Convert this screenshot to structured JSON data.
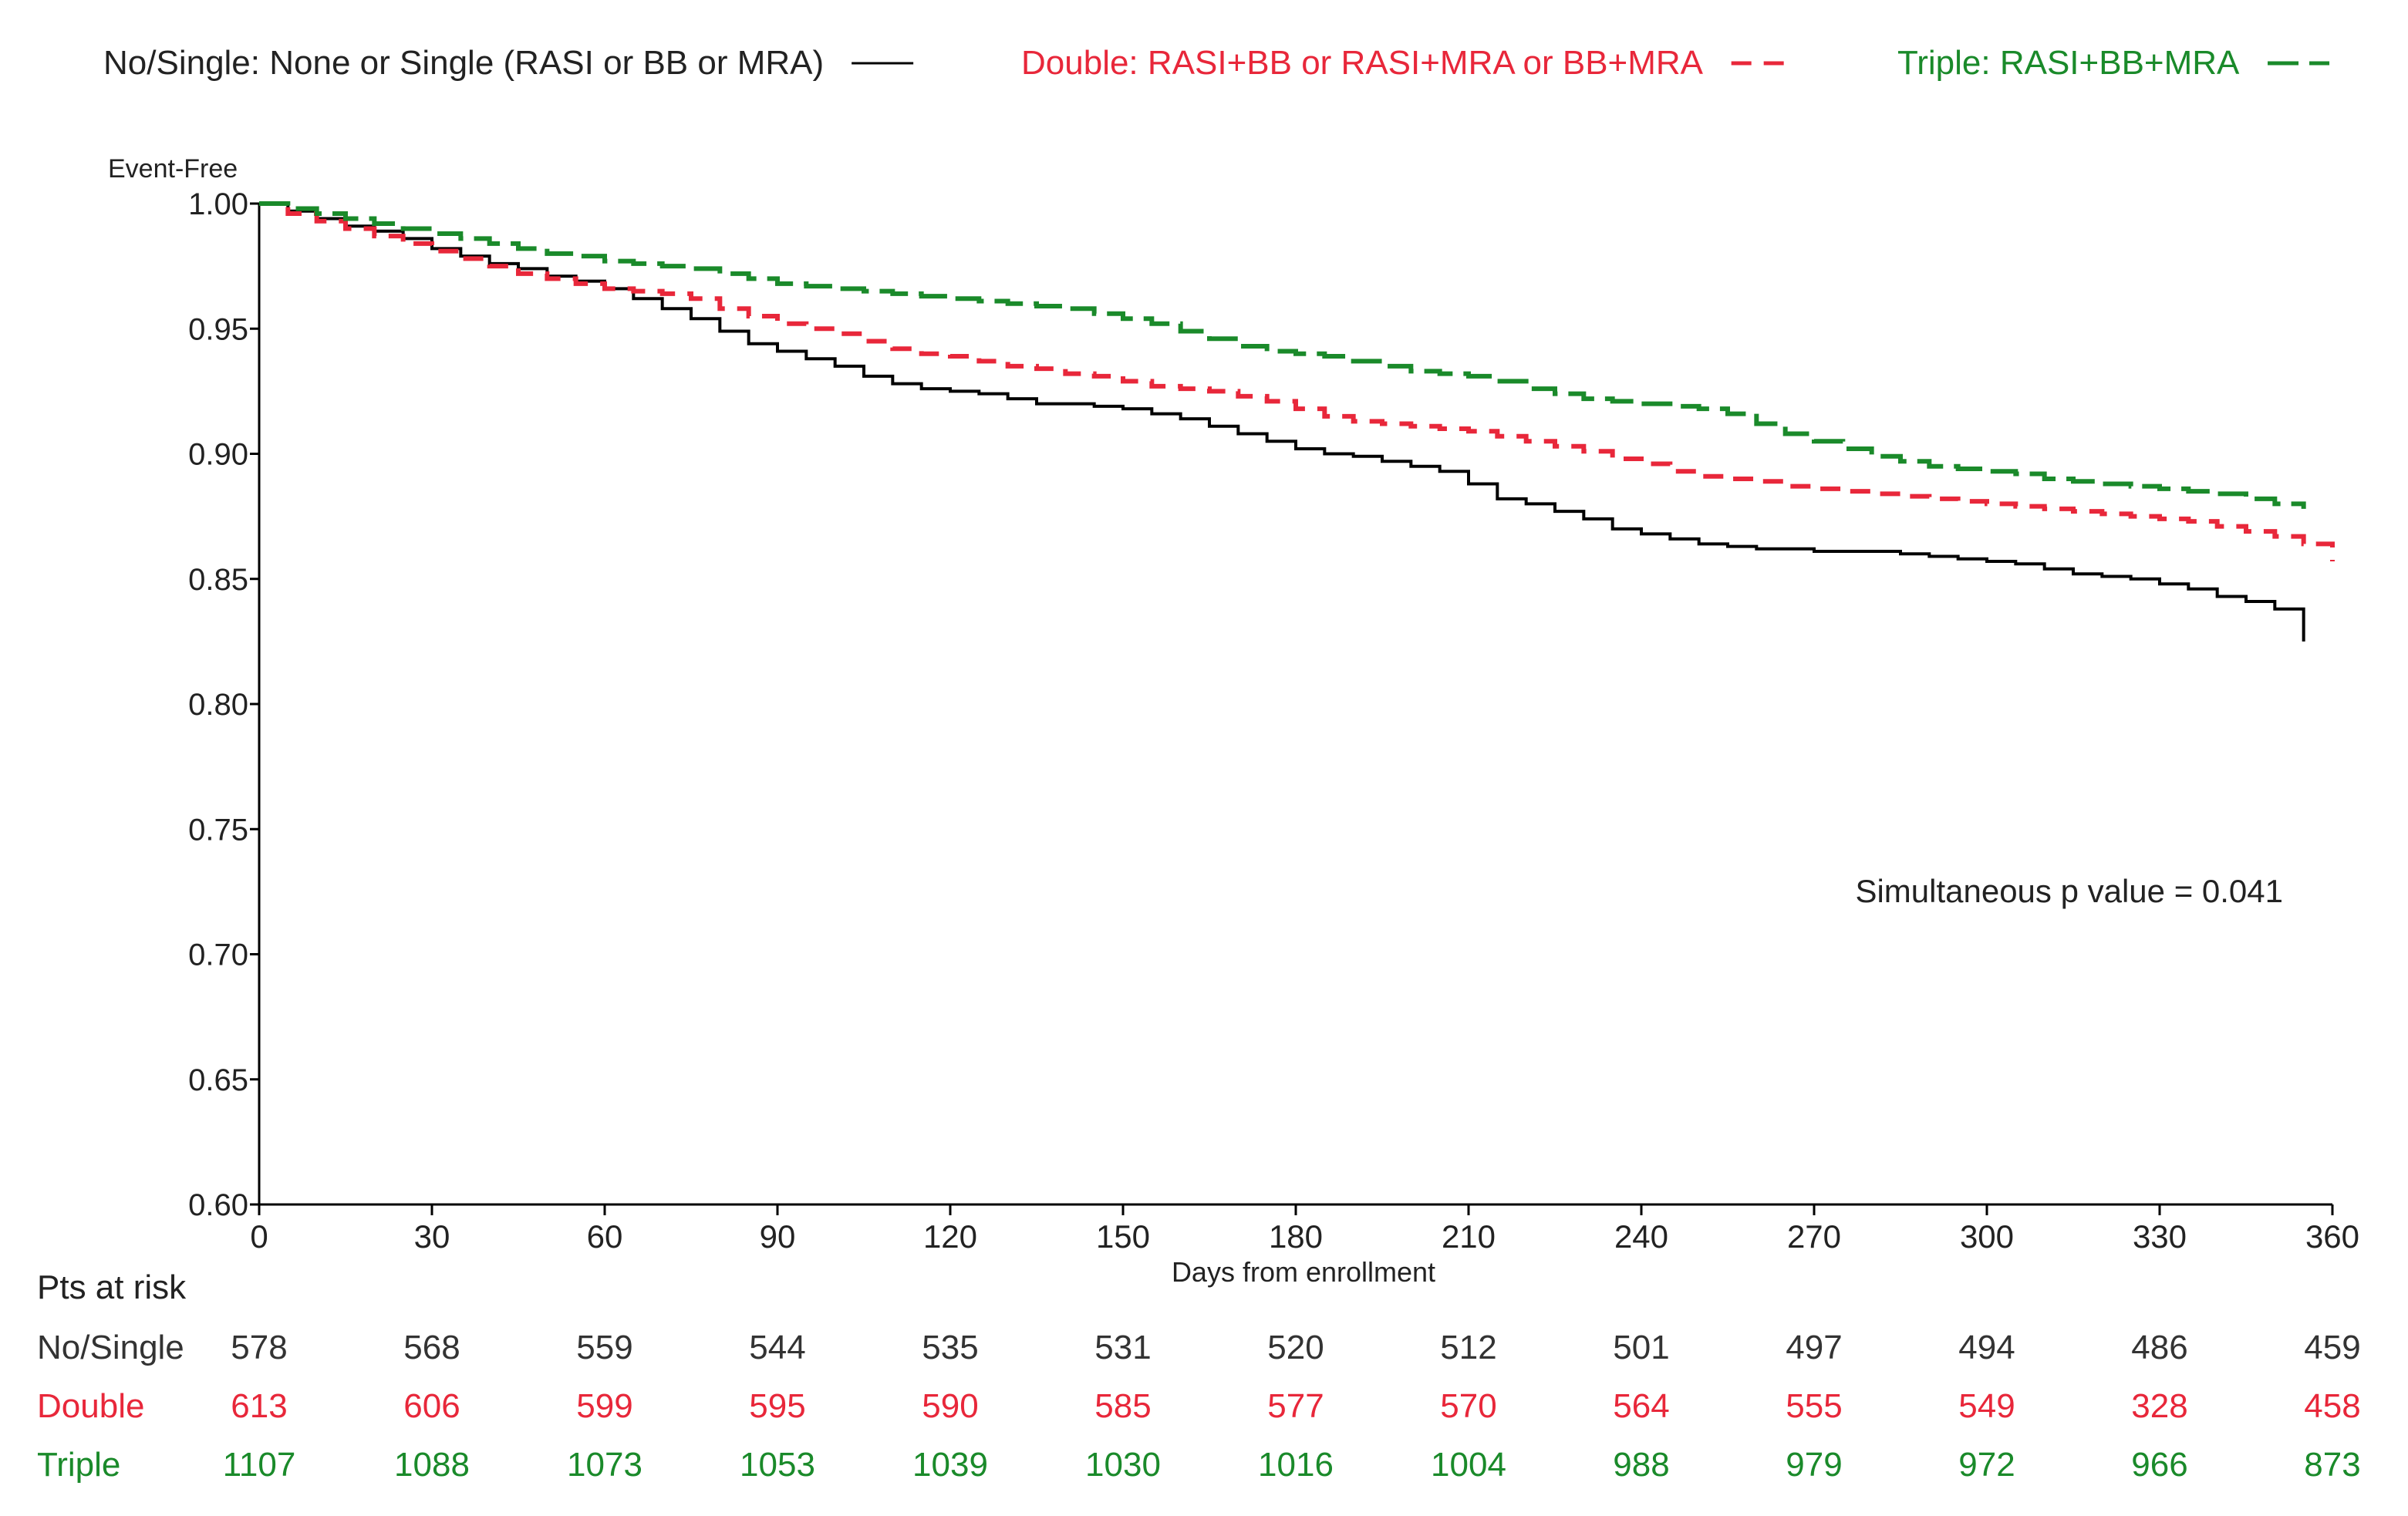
{
  "chart_data": {
    "type": "line",
    "title": "",
    "xlabel": "Days from enrollment",
    "ylabel": "Event-Free",
    "xlim": [
      0,
      360
    ],
    "ylim": [
      0.6,
      1.0
    ],
    "xticks": [
      0,
      30,
      60,
      90,
      120,
      150,
      180,
      210,
      240,
      270,
      300,
      330,
      360
    ],
    "xtick_labels": [
      "0",
      "30",
      "60",
      "90",
      "120",
      "150",
      "180",
      "210",
      "240",
      "270",
      "300",
      "330",
      "360"
    ],
    "yticks": [
      0.6,
      0.65,
      0.7,
      0.75,
      0.8,
      0.85,
      0.9,
      0.95,
      1.0
    ],
    "ytick_labels": [
      "0.60",
      "0.65",
      "0.70",
      "0.75",
      "0.80",
      "0.85",
      "0.90",
      "0.95",
      "1.00"
    ],
    "grid": false,
    "legend_position": "top",
    "annotation": "Simultaneous p value = 0.041",
    "series": [
      {
        "name": "No/Single: None or Single (RASI or BB or MRA)",
        "color": "#000000",
        "dash": "solid",
        "x": [
          0,
          5,
          10,
          15,
          20,
          25,
          30,
          35,
          40,
          45,
          50,
          55,
          60,
          65,
          70,
          75,
          80,
          85,
          90,
          95,
          100,
          105,
          110,
          115,
          120,
          125,
          130,
          135,
          140,
          145,
          150,
          155,
          160,
          165,
          170,
          175,
          180,
          185,
          190,
          195,
          200,
          205,
          210,
          215,
          220,
          225,
          230,
          235,
          240,
          245,
          250,
          255,
          260,
          265,
          270,
          275,
          280,
          285,
          290,
          295,
          300,
          305,
          310,
          315,
          320,
          325,
          330,
          335,
          340,
          345,
          350,
          355
        ],
        "y": [
          1.0,
          0.997,
          0.994,
          0.991,
          0.989,
          0.986,
          0.982,
          0.979,
          0.976,
          0.974,
          0.971,
          0.969,
          0.966,
          0.962,
          0.958,
          0.954,
          0.949,
          0.944,
          0.941,
          0.938,
          0.935,
          0.931,
          0.928,
          0.926,
          0.925,
          0.924,
          0.922,
          0.92,
          0.92,
          0.919,
          0.918,
          0.916,
          0.914,
          0.911,
          0.908,
          0.905,
          0.902,
          0.9,
          0.899,
          0.897,
          0.895,
          0.893,
          0.888,
          0.882,
          0.88,
          0.877,
          0.874,
          0.87,
          0.868,
          0.866,
          0.864,
          0.863,
          0.862,
          0.862,
          0.861,
          0.861,
          0.861,
          0.86,
          0.859,
          0.858,
          0.857,
          0.856,
          0.854,
          0.852,
          0.851,
          0.85,
          0.848,
          0.846,
          0.843,
          0.841,
          0.838,
          0.825
        ]
      },
      {
        "name": "Double: RASI+BB or RASI+MRA or BB+MRA",
        "color": "#e8273a",
        "dash": "dashed",
        "x": [
          0,
          5,
          10,
          15,
          20,
          25,
          30,
          35,
          40,
          45,
          50,
          55,
          60,
          65,
          70,
          75,
          80,
          85,
          90,
          95,
          100,
          105,
          110,
          115,
          120,
          125,
          130,
          135,
          140,
          145,
          150,
          155,
          160,
          165,
          170,
          175,
          180,
          185,
          190,
          195,
          200,
          205,
          210,
          215,
          220,
          225,
          230,
          235,
          240,
          245,
          250,
          255,
          260,
          265,
          270,
          275,
          280,
          285,
          290,
          295,
          300,
          305,
          310,
          315,
          320,
          325,
          330,
          335,
          340,
          345,
          350,
          355,
          360
        ],
        "y": [
          1.0,
          0.996,
          0.993,
          0.99,
          0.987,
          0.984,
          0.981,
          0.978,
          0.975,
          0.972,
          0.97,
          0.968,
          0.966,
          0.965,
          0.964,
          0.962,
          0.958,
          0.955,
          0.952,
          0.95,
          0.948,
          0.945,
          0.942,
          0.94,
          0.939,
          0.937,
          0.935,
          0.934,
          0.932,
          0.931,
          0.929,
          0.927,
          0.926,
          0.925,
          0.923,
          0.921,
          0.918,
          0.915,
          0.913,
          0.912,
          0.911,
          0.91,
          0.909,
          0.907,
          0.905,
          0.903,
          0.901,
          0.898,
          0.896,
          0.893,
          0.891,
          0.89,
          0.889,
          0.887,
          0.886,
          0.885,
          0.884,
          0.883,
          0.882,
          0.881,
          0.88,
          0.879,
          0.878,
          0.877,
          0.876,
          0.875,
          0.874,
          0.873,
          0.871,
          0.869,
          0.867,
          0.864,
          0.857
        ]
      },
      {
        "name": "Triple: RASI+BB+MRA",
        "color": "#1a8a2a",
        "dash": "longdash",
        "x": [
          0,
          5,
          10,
          15,
          20,
          25,
          30,
          35,
          40,
          45,
          50,
          55,
          60,
          65,
          70,
          75,
          80,
          85,
          90,
          95,
          100,
          105,
          110,
          115,
          120,
          125,
          130,
          135,
          140,
          145,
          150,
          155,
          160,
          165,
          170,
          175,
          180,
          185,
          190,
          195,
          200,
          205,
          210,
          215,
          220,
          225,
          230,
          235,
          240,
          245,
          250,
          255,
          260,
          265,
          270,
          275,
          280,
          285,
          290,
          295,
          300,
          305,
          310,
          315,
          320,
          325,
          330,
          335,
          340,
          345,
          350,
          355
        ],
        "y": [
          1.0,
          0.998,
          0.996,
          0.994,
          0.992,
          0.99,
          0.988,
          0.986,
          0.984,
          0.982,
          0.98,
          0.979,
          0.977,
          0.976,
          0.975,
          0.974,
          0.972,
          0.97,
          0.968,
          0.967,
          0.966,
          0.965,
          0.964,
          0.963,
          0.962,
          0.961,
          0.96,
          0.959,
          0.958,
          0.956,
          0.954,
          0.952,
          0.949,
          0.946,
          0.943,
          0.941,
          0.94,
          0.939,
          0.937,
          0.935,
          0.933,
          0.932,
          0.931,
          0.929,
          0.926,
          0.924,
          0.922,
          0.921,
          0.92,
          0.919,
          0.918,
          0.916,
          0.912,
          0.908,
          0.905,
          0.902,
          0.899,
          0.897,
          0.895,
          0.894,
          0.893,
          0.892,
          0.89,
          0.889,
          0.888,
          0.887,
          0.886,
          0.885,
          0.884,
          0.882,
          0.88,
          0.878
        ]
      }
    ],
    "risk_table": {
      "title": "Pts at risk",
      "days": [
        0,
        30,
        60,
        90,
        120,
        150,
        180,
        210,
        240,
        270,
        300,
        330,
        360
      ],
      "rows": [
        {
          "label": "No/Single",
          "color": "#333333",
          "values": [
            "578",
            "568",
            "559",
            "544",
            "535",
            "531",
            "520",
            "512",
            "501",
            "497",
            "494",
            "486",
            "459"
          ]
        },
        {
          "label": "Double",
          "color": "#e8273a",
          "values": [
            "613",
            "606",
            "599",
            "595",
            "590",
            "585",
            "577",
            "570",
            "564",
            "555",
            "549",
            "328",
            "458"
          ]
        },
        {
          "label": "Triple",
          "color": "#1a8a2a",
          "values": [
            "1107",
            "1088",
            "1073",
            "1053",
            "1039",
            "1030",
            "1016",
            "1004",
            "988",
            "979",
            "972",
            "966",
            "873"
          ]
        }
      ]
    }
  }
}
